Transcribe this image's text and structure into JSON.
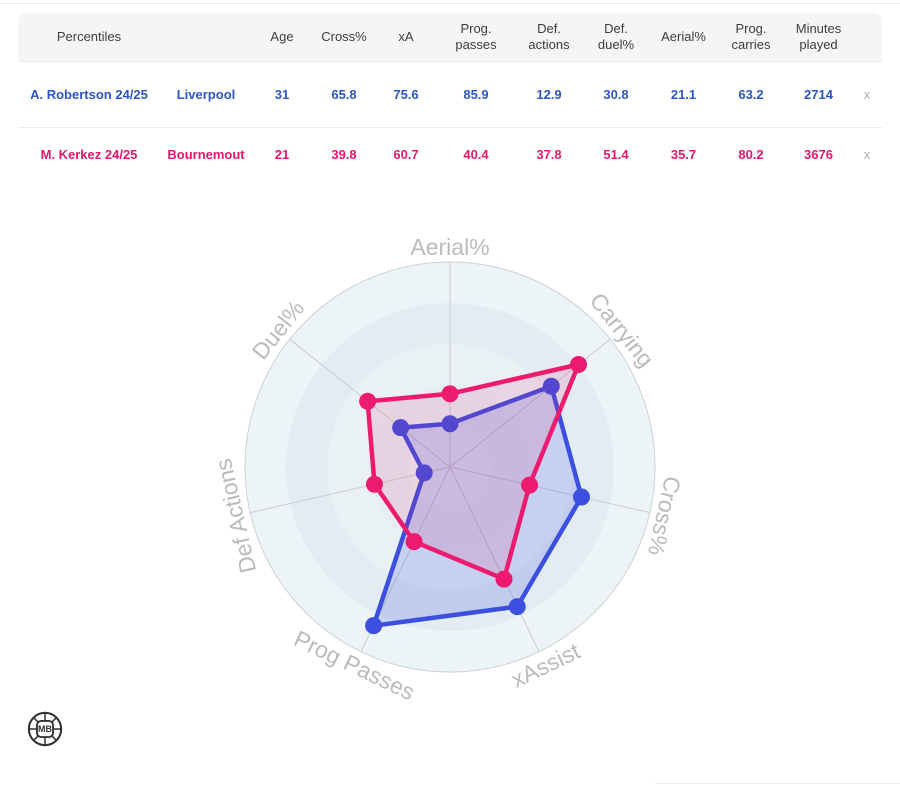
{
  "table": {
    "header_bg": "#f5f5f6",
    "headers": [
      "Percentiles",
      "",
      "Age",
      "Cross%",
      "xA",
      "Prog. passes",
      "Def. actions",
      "Def. duel%",
      "Aerial%",
      "Prog. carries",
      "Minutes played",
      ""
    ],
    "rows": [
      {
        "player": "A. Robertson 24/25",
        "team": "Liverpool",
        "color": "#2e55c7",
        "values": [
          "31",
          "65.8",
          "75.6",
          "85.9",
          "12.9",
          "30.8",
          "21.1",
          "63.2"
        ],
        "minutes": "2714",
        "remove_label": "x"
      },
      {
        "player": "M. Kerkez 24/25",
        "team": "Bournemout",
        "color": "#e4176e",
        "values": [
          "21",
          "39.8",
          "60.7",
          "40.4",
          "37.8",
          "51.4",
          "35.7",
          "80.2"
        ],
        "minutes": "3676",
        "remove_label": "x"
      }
    ]
  },
  "chart_data": {
    "type": "radar",
    "axes": [
      "Aerial%",
      "Carrying",
      "Cross%",
      "xAssist",
      "Prog Passes",
      "Def Actions",
      "Duel%"
    ],
    "series": [
      {
        "name": "A. Robertson 24/25",
        "color": "#3c4fdf",
        "fill_color": "#3c4fdf",
        "fill_opacity": 0.2,
        "values": [
          21.1,
          63.2,
          65.8,
          75.6,
          85.9,
          12.9,
          30.8
        ]
      },
      {
        "name": "M. Kerkez 24/25",
        "color": "#ed1b6f",
        "fill_color": "#ed1b6f",
        "fill_opacity": 0.13,
        "values": [
          35.7,
          80.2,
          39.8,
          60.7,
          40.4,
          37.8,
          51.4
        ]
      }
    ],
    "scale": {
      "min": 0,
      "max": 100,
      "rings": 5
    },
    "style": {
      "ring_colors_outer_to_inner": [
        "#edf4f7",
        "#e3ecf2",
        "#e9f1f5",
        "#e5eff3",
        "#eaf2f5"
      ],
      "outer_circle_stroke": "#ccd2d5",
      "spoke_color": "#c8ccce",
      "axis_label_color": "#b8bcbf",
      "axis_label_size": 23,
      "line_width": 4.5,
      "dot_radius": 8.5,
      "legend": "none",
      "grid": "circular"
    }
  },
  "logo": {
    "text": "MB",
    "color": "#333333"
  }
}
